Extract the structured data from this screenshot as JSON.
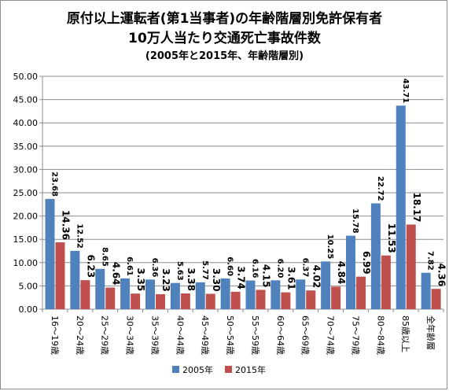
{
  "chart_data": {
    "type": "bar",
    "title": "原付以上運転者(第1当事者)の年齢階層別免許保有者",
    "subtitle": "10万人当たり交通死亡事故件数",
    "note": "(2005年と2015年、年齢階層別)",
    "categories": [
      "16～19歳",
      "20～24歳",
      "25～29歳",
      "30～34歳",
      "35～39歳",
      "40～44歳",
      "45～49歳",
      "50～54歳",
      "55～59歳",
      "60～64歳",
      "65～69歳",
      "70～74歳",
      "75～79歳",
      "80～84歳",
      "85歳以上",
      "全年齢層"
    ],
    "series": [
      {
        "name": "2005年",
        "color": "#4f81bd",
        "values": [
          23.68,
          12.52,
          8.65,
          6.61,
          6.36,
          5.63,
          5.77,
          6.6,
          6.16,
          6.2,
          6.37,
          10.25,
          15.78,
          22.72,
          43.71,
          7.82
        ],
        "labels": [
          "23.68",
          "12.52",
          "8.65",
          "6.61",
          "6.36",
          "5.63",
          "5.77",
          "6.60",
          "6.16",
          "6.20",
          "6.37",
          "10.25",
          "15.78",
          "22.72",
          "43.71",
          "7.82"
        ]
      },
      {
        "name": "2015年",
        "color": "#c0504d",
        "values": [
          14.36,
          6.23,
          4.64,
          3.35,
          3.23,
          3.38,
          3.3,
          3.74,
          4.15,
          3.61,
          4.02,
          4.84,
          6.99,
          11.53,
          18.17,
          4.36
        ],
        "labels": [
          "14.36",
          "6.23",
          "4.64",
          "3.35",
          "3.23",
          "3.38",
          "3.30",
          "3.74",
          "4.15",
          "3.61",
          "4.02",
          "4.84",
          "6.99",
          "11.53",
          "18.17",
          "4.36"
        ]
      }
    ],
    "ylim": [
      0,
      50
    ],
    "yticks": [
      "0.00",
      "5.00",
      "10.00",
      "15.00",
      "20.00",
      "25.00",
      "30.00",
      "35.00",
      "40.00",
      "45.00",
      "50.00"
    ],
    "grid": true,
    "legend": "bottom"
  }
}
